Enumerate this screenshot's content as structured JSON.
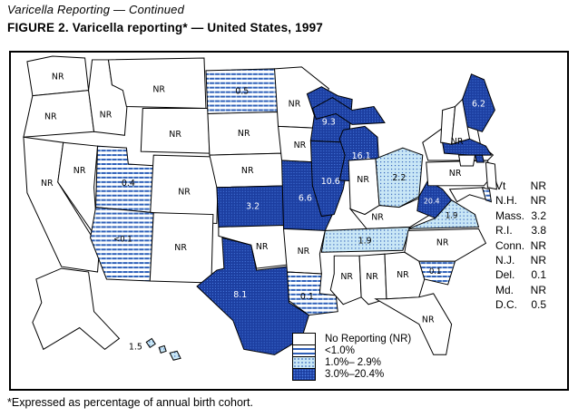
{
  "header": {
    "continued": "Varicella Reporting — Continued",
    "title": "FIGURE 2. Varicella reporting* — United States, 1997"
  },
  "footnote": "*Expressed as percentage of annual birth cohort.",
  "legend": [
    {
      "category": "nr",
      "label": "No Reporting (NR)"
    },
    {
      "category": "lt1",
      "label": "<1.0%"
    },
    {
      "category": "mid",
      "label": "1.0%– 2.9%"
    },
    {
      "category": "high",
      "label": "3.0%–20.4%"
    }
  ],
  "inset_states": [
    {
      "state": "Vt",
      "value": "NR"
    },
    {
      "state": "N.H.",
      "value": "NR"
    },
    {
      "state": "Mass.",
      "value": "3.2"
    },
    {
      "state": "R.I.",
      "value": "3.8"
    },
    {
      "state": "Conn.",
      "value": "NR"
    },
    {
      "state": "N.J.",
      "value": "NR"
    },
    {
      "state": "Del.",
      "value": "0.1"
    },
    {
      "state": "Md.",
      "value": "NR"
    },
    {
      "state": "D.C.",
      "value": "0.5"
    }
  ],
  "map_states": [
    {
      "abbr": "WA",
      "name": "Washington",
      "category": "nr",
      "label": "NR"
    },
    {
      "abbr": "OR",
      "name": "Oregon",
      "category": "nr",
      "label": "NR"
    },
    {
      "abbr": "CA",
      "name": "California",
      "category": "nr",
      "label": "NR"
    },
    {
      "abbr": "NV",
      "name": "Nevada",
      "category": "nr",
      "label": "NR"
    },
    {
      "abbr": "ID",
      "name": "Idaho",
      "category": "nr",
      "label": "NR"
    },
    {
      "abbr": "MT",
      "name": "Montana",
      "category": "nr",
      "label": "NR"
    },
    {
      "abbr": "WY",
      "name": "Wyoming",
      "category": "nr",
      "label": "NR"
    },
    {
      "abbr": "UT",
      "name": "Utah",
      "category": "lt1",
      "label": "0.4"
    },
    {
      "abbr": "CO",
      "name": "Colorado",
      "category": "nr",
      "label": "NR"
    },
    {
      "abbr": "AZ",
      "name": "Arizona",
      "category": "lt1",
      "label": "<0.1"
    },
    {
      "abbr": "NM",
      "name": "New Mexico",
      "category": "nr",
      "label": "NR"
    },
    {
      "abbr": "ND",
      "name": "North Dakota",
      "category": "lt1",
      "label": "0.5"
    },
    {
      "abbr": "SD",
      "name": "South Dakota",
      "category": "nr",
      "label": "NR"
    },
    {
      "abbr": "NE",
      "name": "Nebraska",
      "category": "nr",
      "label": "NR"
    },
    {
      "abbr": "KS",
      "name": "Kansas",
      "category": "high",
      "label": "3.2"
    },
    {
      "abbr": "OK",
      "name": "Oklahoma",
      "category": "nr",
      "label": "NR"
    },
    {
      "abbr": "TX",
      "name": "Texas",
      "category": "high",
      "label": "8.1"
    },
    {
      "abbr": "MN",
      "name": "Minnesota",
      "category": "nr",
      "label": "NR"
    },
    {
      "abbr": "IA",
      "name": "Iowa",
      "category": "nr",
      "label": "NR"
    },
    {
      "abbr": "MO",
      "name": "Missouri",
      "category": "high",
      "label": "6.6"
    },
    {
      "abbr": "AR",
      "name": "Arkansas",
      "category": "nr",
      "label": "NR"
    },
    {
      "abbr": "LA",
      "name": "Louisiana",
      "category": "lt1",
      "label": "0.1"
    },
    {
      "abbr": "WI",
      "name": "Wisconsin",
      "category": "high",
      "label": "9.3"
    },
    {
      "abbr": "IL",
      "name": "Illinois",
      "category": "high",
      "label": "10.6"
    },
    {
      "abbr": "MI",
      "name": "Michigan",
      "category": "high",
      "label": "16.1"
    },
    {
      "abbr": "IN",
      "name": "Indiana",
      "category": "nr",
      "label": "NR"
    },
    {
      "abbr": "OH",
      "name": "Ohio",
      "category": "mid",
      "label": "2.2"
    },
    {
      "abbr": "KY",
      "name": "Kentucky",
      "category": "nr",
      "label": "NR"
    },
    {
      "abbr": "TN",
      "name": "Tennessee",
      "category": "mid",
      "label": "1.9"
    },
    {
      "abbr": "MS",
      "name": "Mississippi",
      "category": "nr",
      "label": "NR"
    },
    {
      "abbr": "AL",
      "name": "Alabama",
      "category": "nr",
      "label": "NR"
    },
    {
      "abbr": "GA",
      "name": "Georgia",
      "category": "nr",
      "label": "NR"
    },
    {
      "abbr": "FL",
      "name": "Florida",
      "category": "nr",
      "label": "NR"
    },
    {
      "abbr": "SC",
      "name": "South Carolina",
      "category": "lt1",
      "label": "0.1"
    },
    {
      "abbr": "NC",
      "name": "North Carolina",
      "category": "nr",
      "label": "NR"
    },
    {
      "abbr": "VA",
      "name": "Virginia",
      "category": "mid",
      "label": "1.9"
    },
    {
      "abbr": "WV",
      "name": "West Virginia",
      "category": "high",
      "label": "20.4"
    },
    {
      "abbr": "NY",
      "name": "New York",
      "category": "nr",
      "label": "NR"
    },
    {
      "abbr": "PA",
      "name": "Pennsylvania",
      "category": "nr",
      "label": "NR"
    },
    {
      "abbr": "ME",
      "name": "Maine",
      "category": "high",
      "label": "6.2"
    },
    {
      "abbr": "VT",
      "name": "Vermont",
      "category": "nr",
      "label": ""
    },
    {
      "abbr": "NH",
      "name": "New Hampshire",
      "category": "nr",
      "label": ""
    },
    {
      "abbr": "MA",
      "name": "Massachusetts",
      "category": "high",
      "label": ""
    },
    {
      "abbr": "RI",
      "name": "Rhode Island",
      "category": "high",
      "label": ""
    },
    {
      "abbr": "CT",
      "name": "Connecticut",
      "category": "nr",
      "label": ""
    },
    {
      "abbr": "NJ",
      "name": "New Jersey",
      "category": "nr",
      "label": ""
    },
    {
      "abbr": "MD",
      "name": "Maryland",
      "category": "nr",
      "label": ""
    },
    {
      "abbr": "DE",
      "name": "Delaware",
      "category": "lt1",
      "label": ""
    },
    {
      "abbr": "AK",
      "name": "Alaska",
      "category": "nr",
      "label": ""
    },
    {
      "abbr": "HI",
      "name": "Hawaii",
      "category": "mid",
      "label": "1.5"
    }
  ],
  "colors": {
    "high_fill": "#1c3ea0",
    "mid_fill": "#c9e7f6",
    "stripe_blue": "#2e5fb8",
    "nr_fill": "#ffffff",
    "border": "#000000",
    "label_on_dark": "#ffffff",
    "label_on_light": "#000000"
  }
}
